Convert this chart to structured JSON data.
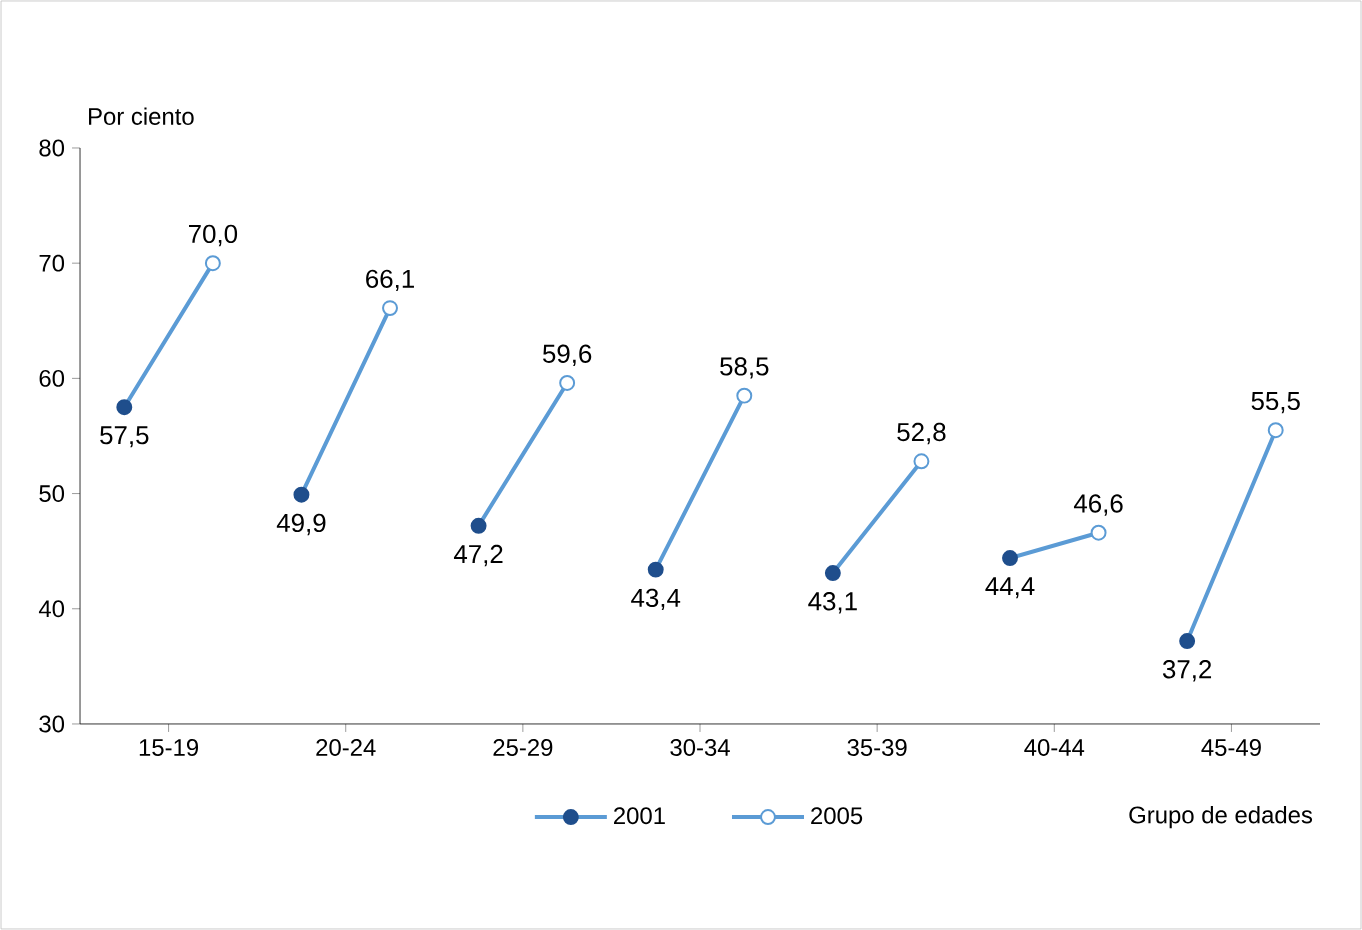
{
  "chart_data": {
    "type": "line",
    "ylabel": "Por ciento",
    "xlabel": "Grupo de edades",
    "categories": [
      "15-19",
      "20-24",
      "25-29",
      "30-34",
      "35-39",
      "40-44",
      "45-49"
    ],
    "series": [
      {
        "name": "2001",
        "type": "scatter",
        "color": "#1f4e8c",
        "values": [
          57.5,
          49.9,
          47.2,
          43.4,
          43.1,
          44.4,
          37.2
        ],
        "value_labels": [
          "57,5",
          "49,9",
          "47,2",
          "43,4",
          "43,1",
          "44,4",
          "37,2"
        ]
      },
      {
        "name": "2005",
        "type": "scatter",
        "color": "#5b9bd5",
        "values": [
          70.0,
          66.1,
          59.6,
          58.5,
          52.8,
          46.6,
          55.5
        ],
        "value_labels": [
          "70,0",
          "66,1",
          "59,6",
          "58,5",
          "52,8",
          "46,6",
          "55,5"
        ]
      }
    ],
    "ylim": [
      30,
      80
    ],
    "yticks": [
      30,
      40,
      50,
      60,
      70,
      80
    ],
    "marker": "circle",
    "legend": "bottom"
  }
}
